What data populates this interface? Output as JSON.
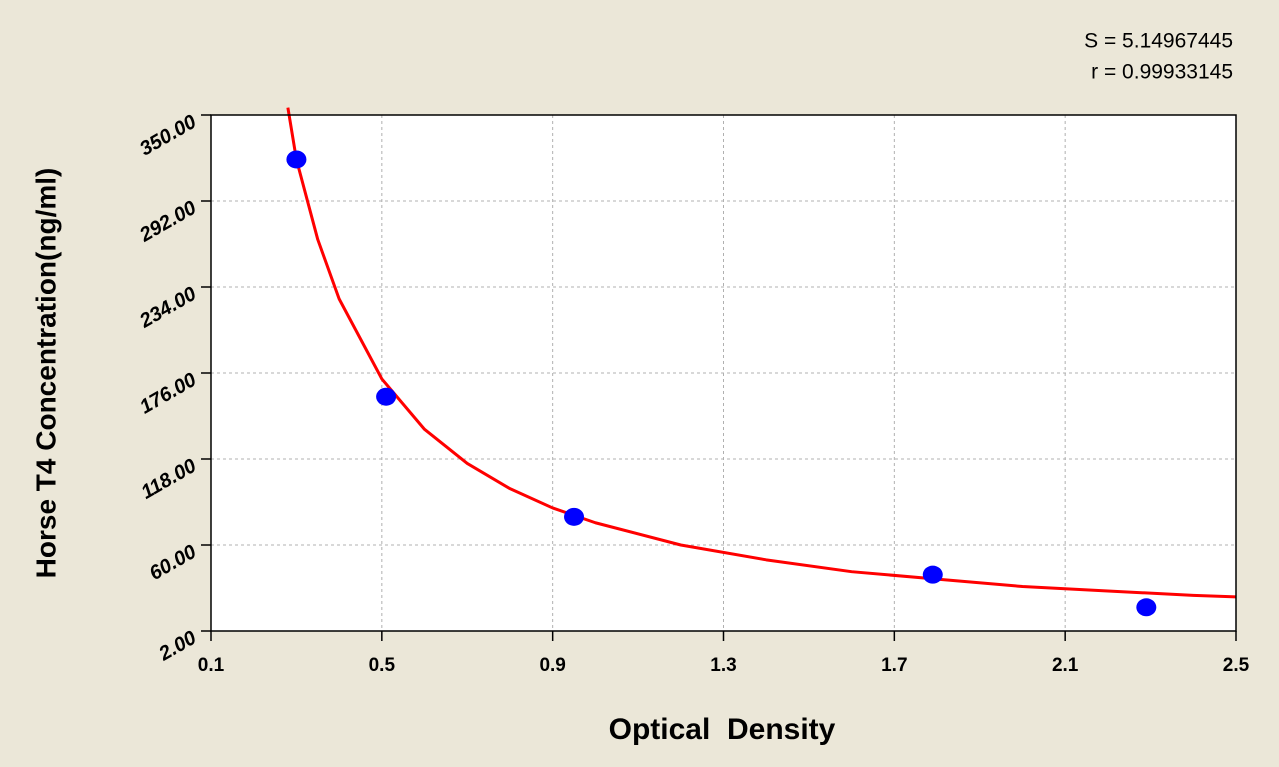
{
  "chart_data": {
    "type": "scatter",
    "x_label": "Optical  Density",
    "y_label": "Horse T4 Concentration(ng/ml)",
    "annotations": [
      "S = 5.14967445",
      "r = 0.99933145"
    ],
    "xlim": [
      0.1,
      2.5
    ],
    "xticks": [
      0.1,
      0.5,
      0.9,
      1.3,
      1.7,
      2.1,
      2.5
    ],
    "ylim": [
      2,
      350
    ],
    "yticks": [
      {
        "value": 2,
        "label": "2.00"
      },
      {
        "value": 60,
        "label": "60.00"
      },
      {
        "value": 118,
        "label": "118.00"
      },
      {
        "value": 176,
        "label": "176.00"
      },
      {
        "value": 234,
        "label": "234.00"
      },
      {
        "value": 292,
        "label": "292.00"
      },
      {
        "value": 350,
        "label": "350.00"
      }
    ],
    "grid": true,
    "series": [
      {
        "mode": "markers",
        "color": "#0000ff",
        "x": [
          0.3,
          0.51,
          0.95,
          1.79,
          2.29
        ],
        "values": [
          320,
          160,
          79,
          40,
          18
        ]
      },
      {
        "mode": "line",
        "color": "#ff0000",
        "x": [
          0.28,
          0.3,
          0.35,
          0.4,
          0.5,
          0.6,
          0.7,
          0.8,
          0.9,
          1.0,
          1.2,
          1.4,
          1.6,
          1.8,
          2.0,
          2.2,
          2.4,
          2.5
        ],
        "values": [
          355,
          320,
          266,
          226,
          172,
          138,
          115,
          98,
          85,
          75,
          60,
          50,
          42,
          37,
          32,
          29,
          26,
          25
        ]
      }
    ]
  }
}
